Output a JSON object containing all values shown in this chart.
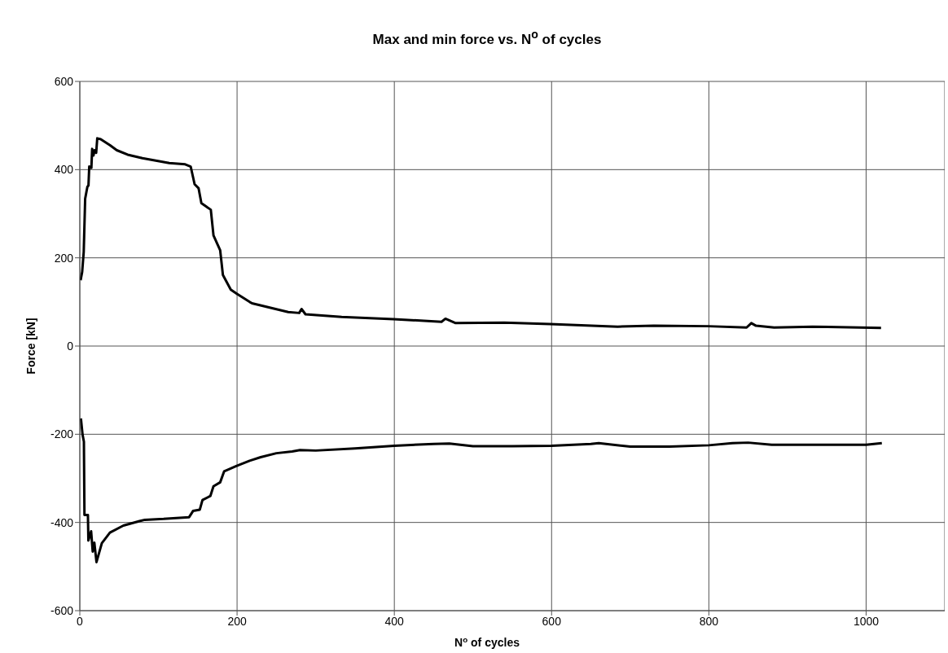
{
  "chart_data": {
    "type": "line",
    "title": "Max and min force vs. N$^{o}$ of cycles",
    "xlabel": "N$^{o}$ of cycles",
    "ylabel": "Force [kN]",
    "xlim": [
      0,
      1100
    ],
    "xticks": [
      0,
      200,
      400,
      600,
      800,
      1000
    ],
    "ylim": [
      -600,
      600
    ],
    "yticks": [
      -600,
      -400,
      -200,
      0,
      200,
      400,
      600
    ],
    "grid": true,
    "marker": "none",
    "line_style": "solid",
    "series": [
      {
        "color": "#000000",
        "x": [
          1,
          3,
          5,
          6.8,
          9.6,
          11,
          12,
          14.7,
          15.7,
          17.4,
          18.8,
          20.8,
          22.2,
          26.6,
          38.6,
          47,
          60.8,
          79.5,
          113.7,
          134,
          141,
          146,
          151,
          154.6,
          166.6,
          170,
          178.5,
          182,
          192,
          200,
          216,
          219,
          265,
          279,
          282,
          287,
          333,
          399,
          460,
          465,
          478,
          540,
          598,
          684,
          730,
          799,
          848,
          854,
          860,
          883,
          932,
          1019
        ],
        "values": [
          149,
          168,
          214,
          334,
          361,
          364,
          407,
          404,
          447,
          432,
          444,
          438,
          471,
          469,
          455,
          444,
          434,
          426,
          415,
          412,
          407,
          367,
          358,
          324,
          309,
          251,
          217,
          161,
          128,
          118,
          100,
          97,
          77,
          75,
          84,
          72,
          66,
          61,
          55,
          62,
          52,
          53,
          50,
          44,
          46,
          45,
          42,
          52,
          46,
          42,
          44,
          41
        ]
      },
      {
        "color": "#000000",
        "x": [
          1.4,
          3.5,
          5.2,
          5.9,
          10.3,
          10.9,
          14.4,
          16.4,
          18.5,
          21.2,
          28,
          38.3,
          55.4,
          75.9,
          82.7,
          106.6,
          139,
          144,
          152.6,
          156,
          166,
          170,
          178.5,
          183.6,
          199,
          216,
          230,
          250,
          270,
          280,
          300,
          350,
          400,
          450,
          470,
          500,
          550,
          600,
          650,
          660,
          700,
          750,
          800,
          830,
          850,
          880,
          950,
          1000,
          1020
        ],
        "values": [
          -164,
          -201,
          -217,
          -383,
          -383,
          -441,
          -420,
          -466,
          -446,
          -490,
          -447,
          -423,
          -407,
          -397,
          -394,
          -392,
          -388,
          -374,
          -371,
          -349,
          -340,
          -318,
          -309,
          -284,
          -272,
          -260,
          -252,
          -243,
          -239,
          -236,
          -237,
          -232,
          -226,
          -222,
          -221,
          -227,
          -227,
          -226,
          -222,
          -220,
          -228,
          -228,
          -225,
          -220,
          -219,
          -224,
          -224,
          -224,
          -220
        ]
      }
    ]
  }
}
